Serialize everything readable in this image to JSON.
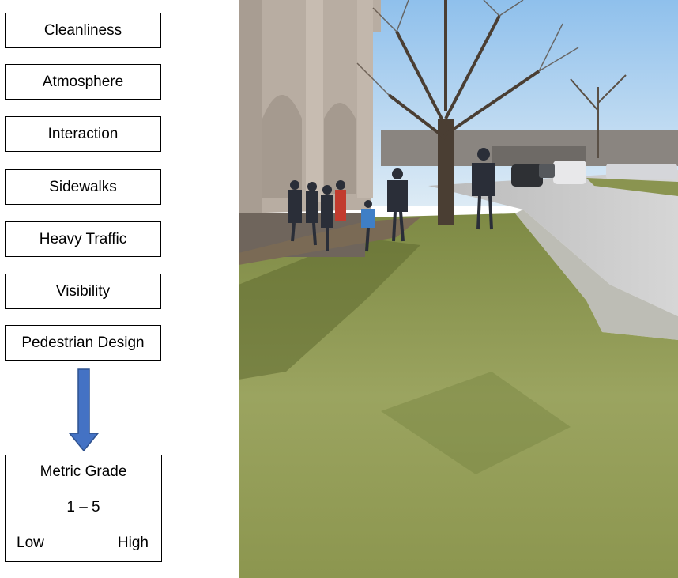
{
  "metrics": [
    "Cleanliness",
    "Atmosphere",
    "Interaction",
    "Sidewalks",
    "Heavy Traffic",
    "Visibility",
    "Pedestrian Design"
  ],
  "grade": {
    "title": "Metric Grade",
    "range": "1 – 5",
    "low": "Low",
    "high": "High"
  },
  "colors": {
    "arrow_fill": "#4472C4",
    "arrow_stroke": "#2F528F",
    "sky": "#BFD9F0",
    "grass": "#8E9A55",
    "road": "#C9C9C9",
    "building": "#B8ADA2"
  },
  "photo": {
    "icon": "street-scene-photo"
  }
}
